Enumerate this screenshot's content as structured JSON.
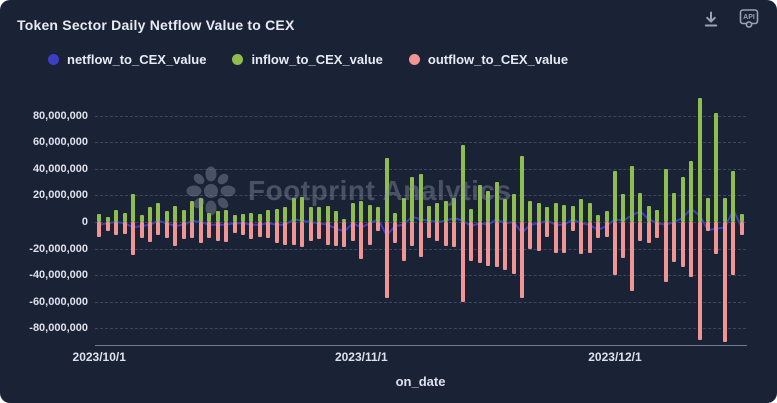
{
  "header": {
    "title": "Token Sector Daily Netflow Value to CEX",
    "download_icon": "download-icon",
    "api_icon": "api-icon"
  },
  "legend": [
    {
      "label": "netflow_to_CEX_value"
    },
    {
      "label": "inflow_to_CEX_value"
    },
    {
      "label": "outflow_to_CEX_value"
    }
  ],
  "watermark_text": "Footprint Analytics",
  "colors": {
    "background": "#1a2235",
    "netflow": "#3c3fc4",
    "inflow": "#8fbe4f",
    "outflow": "#f19494",
    "gridline": "#3e4760",
    "axis_text": "#dde1ec"
  },
  "chart_data": {
    "type": "bar",
    "title": "Token Sector Daily Netflow Value to CEX",
    "xlabel": "on_date",
    "ylabel": "",
    "ylim": [
      -92000000,
      95000000
    ],
    "grid": "dashed-horizontal",
    "legend_position": "top-left",
    "y_ticks": [
      {
        "value": 80000000,
        "label": "80,000,000"
      },
      {
        "value": 60000000,
        "label": "60,000,000"
      },
      {
        "value": 40000000,
        "label": "40,000,000"
      },
      {
        "value": 20000000,
        "label": "20,000,000"
      },
      {
        "value": 0,
        "label": "0"
      },
      {
        "value": -20000000,
        "label": "-20,000,000"
      },
      {
        "value": -40000000,
        "label": "-40,000,000"
      },
      {
        "value": -60000000,
        "label": "-60,000,000"
      },
      {
        "value": -80000000,
        "label": "-80,000,000"
      }
    ],
    "x_ticks": [
      {
        "index": 0,
        "label": "2023/10/1"
      },
      {
        "index": 31,
        "label": "2023/11/1"
      },
      {
        "index": 61,
        "label": "2023/12/1"
      }
    ],
    "categories": [
      "2023/10/1",
      "2023/10/2",
      "2023/10/3",
      "2023/10/4",
      "2023/10/5",
      "2023/10/6",
      "2023/10/7",
      "2023/10/8",
      "2023/10/9",
      "2023/10/10",
      "2023/10/11",
      "2023/10/12",
      "2023/10/13",
      "2023/10/14",
      "2023/10/15",
      "2023/10/16",
      "2023/10/17",
      "2023/10/18",
      "2023/10/19",
      "2023/10/20",
      "2023/10/21",
      "2023/10/22",
      "2023/10/23",
      "2023/10/24",
      "2023/10/25",
      "2023/10/26",
      "2023/10/27",
      "2023/10/28",
      "2023/10/29",
      "2023/10/30",
      "2023/10/31",
      "2023/11/1",
      "2023/11/2",
      "2023/11/3",
      "2023/11/4",
      "2023/11/5",
      "2023/11/6",
      "2023/11/7",
      "2023/11/8",
      "2023/11/9",
      "2023/11/10",
      "2023/11/11",
      "2023/11/12",
      "2023/11/13",
      "2023/11/14",
      "2023/11/15",
      "2023/11/16",
      "2023/11/17",
      "2023/11/18",
      "2023/11/19",
      "2023/11/20",
      "2023/11/21",
      "2023/11/22",
      "2023/11/23",
      "2023/11/24",
      "2023/11/25",
      "2023/11/26",
      "2023/11/27",
      "2023/11/28",
      "2023/11/29",
      "2023/11/30",
      "2023/12/1",
      "2023/12/2",
      "2023/12/3",
      "2023/12/4",
      "2023/12/5",
      "2023/12/6",
      "2023/12/7",
      "2023/12/8",
      "2023/12/9",
      "2023/12/10",
      "2023/12/11",
      "2023/12/12",
      "2023/12/13",
      "2023/12/14",
      "2023/12/15",
      "2023/12/16"
    ],
    "series": [
      {
        "name": "netflow_to_CEX_value",
        "type": "line",
        "color": "#3c3fc4",
        "values": [
          -2000000,
          -1000000,
          0,
          -1000000,
          -4000000,
          -3000000,
          -2000000,
          1000000,
          -1000000,
          -3000000,
          -2000000,
          1000000,
          0,
          -2000000,
          -2000000,
          -2000000,
          -1000000,
          -1000000,
          -2000000,
          -2000000,
          -1000000,
          -2000000,
          -2000000,
          2000000,
          1000000,
          0,
          -1000000,
          -2000000,
          -5000000,
          -7000000,
          -1000000,
          -4000000,
          -1000000,
          2000000,
          -10000000,
          -3000000,
          -2000000,
          4000000,
          2000000,
          1000000,
          0,
          1000000,
          3000000,
          1000000,
          -3000000,
          -1000000,
          -2000000,
          2000000,
          -1000000,
          0,
          -8000000,
          -2000000,
          -1000000,
          1000000,
          -2000000,
          -2000000,
          2000000,
          -1000000,
          -2000000,
          -6000000,
          -3000000,
          2000000,
          1000000,
          5000000,
          8000000,
          2000000,
          -1000000,
          -2000000,
          0,
          3000000,
          10000000,
          5000000,
          -6000000,
          -5000000,
          -4000000,
          9000000,
          -4000000
        ]
      },
      {
        "name": "inflow_to_CEX_value",
        "type": "bar",
        "color": "#8fbe4f",
        "values": [
          6000000,
          4000000,
          9000000,
          7000000,
          21000000,
          5000000,
          11000000,
          14000000,
          8000000,
          12000000,
          9000000,
          16000000,
          18000000,
          7000000,
          8000000,
          9000000,
          5000000,
          6000000,
          7000000,
          6000000,
          9000000,
          10000000,
          11000000,
          18000000,
          19000000,
          11000000,
          11000000,
          12000000,
          8000000,
          2000000,
          14000000,
          16000000,
          13000000,
          11000000,
          48000000,
          7000000,
          18000000,
          34000000,
          36000000,
          12000000,
          14000000,
          16000000,
          18000000,
          58000000,
          10000000,
          28000000,
          23000000,
          30000000,
          17000000,
          21000000,
          50000000,
          16000000,
          14000000,
          11000000,
          14000000,
          13000000,
          12000000,
          17000000,
          14000000,
          5000000,
          8000000,
          38000000,
          21000000,
          42000000,
          22000000,
          12000000,
          9000000,
          40000000,
          22000000,
          34000000,
          46000000,
          93000000,
          18000000,
          82000000,
          18000000,
          38000000,
          6000000
        ]
      },
      {
        "name": "outflow_to_CEX_value",
        "type": "bar",
        "color": "#f19494",
        "values": [
          -11000000,
          -7000000,
          -10000000,
          -9000000,
          -25000000,
          -12000000,
          -15000000,
          -10000000,
          -12000000,
          -18000000,
          -13000000,
          -12000000,
          -16000000,
          -12000000,
          -14000000,
          -15000000,
          -8000000,
          -10000000,
          -13000000,
          -11000000,
          -12000000,
          -16000000,
          -17000000,
          -17000000,
          -19000000,
          -14000000,
          -13000000,
          -17000000,
          -18000000,
          -19000000,
          -14000000,
          -28000000,
          -17000000,
          -7000000,
          -57000000,
          -16000000,
          -29000000,
          -18000000,
          -26000000,
          -12000000,
          -14000000,
          -18000000,
          -19000000,
          -60000000,
          -29000000,
          -31000000,
          -33000000,
          -34000000,
          -36000000,
          -39000000,
          -57000000,
          -20000000,
          -22000000,
          -11000000,
          -23000000,
          -23000000,
          -7000000,
          -24000000,
          -23000000,
          -12000000,
          -11000000,
          -40000000,
          -27000000,
          -52000000,
          -14000000,
          -16000000,
          -12000000,
          -45000000,
          -30000000,
          -34000000,
          -41000000,
          -89000000,
          -7000000,
          -24000000,
          -90000000,
          -40000000,
          -10000000
        ]
      }
    ]
  }
}
